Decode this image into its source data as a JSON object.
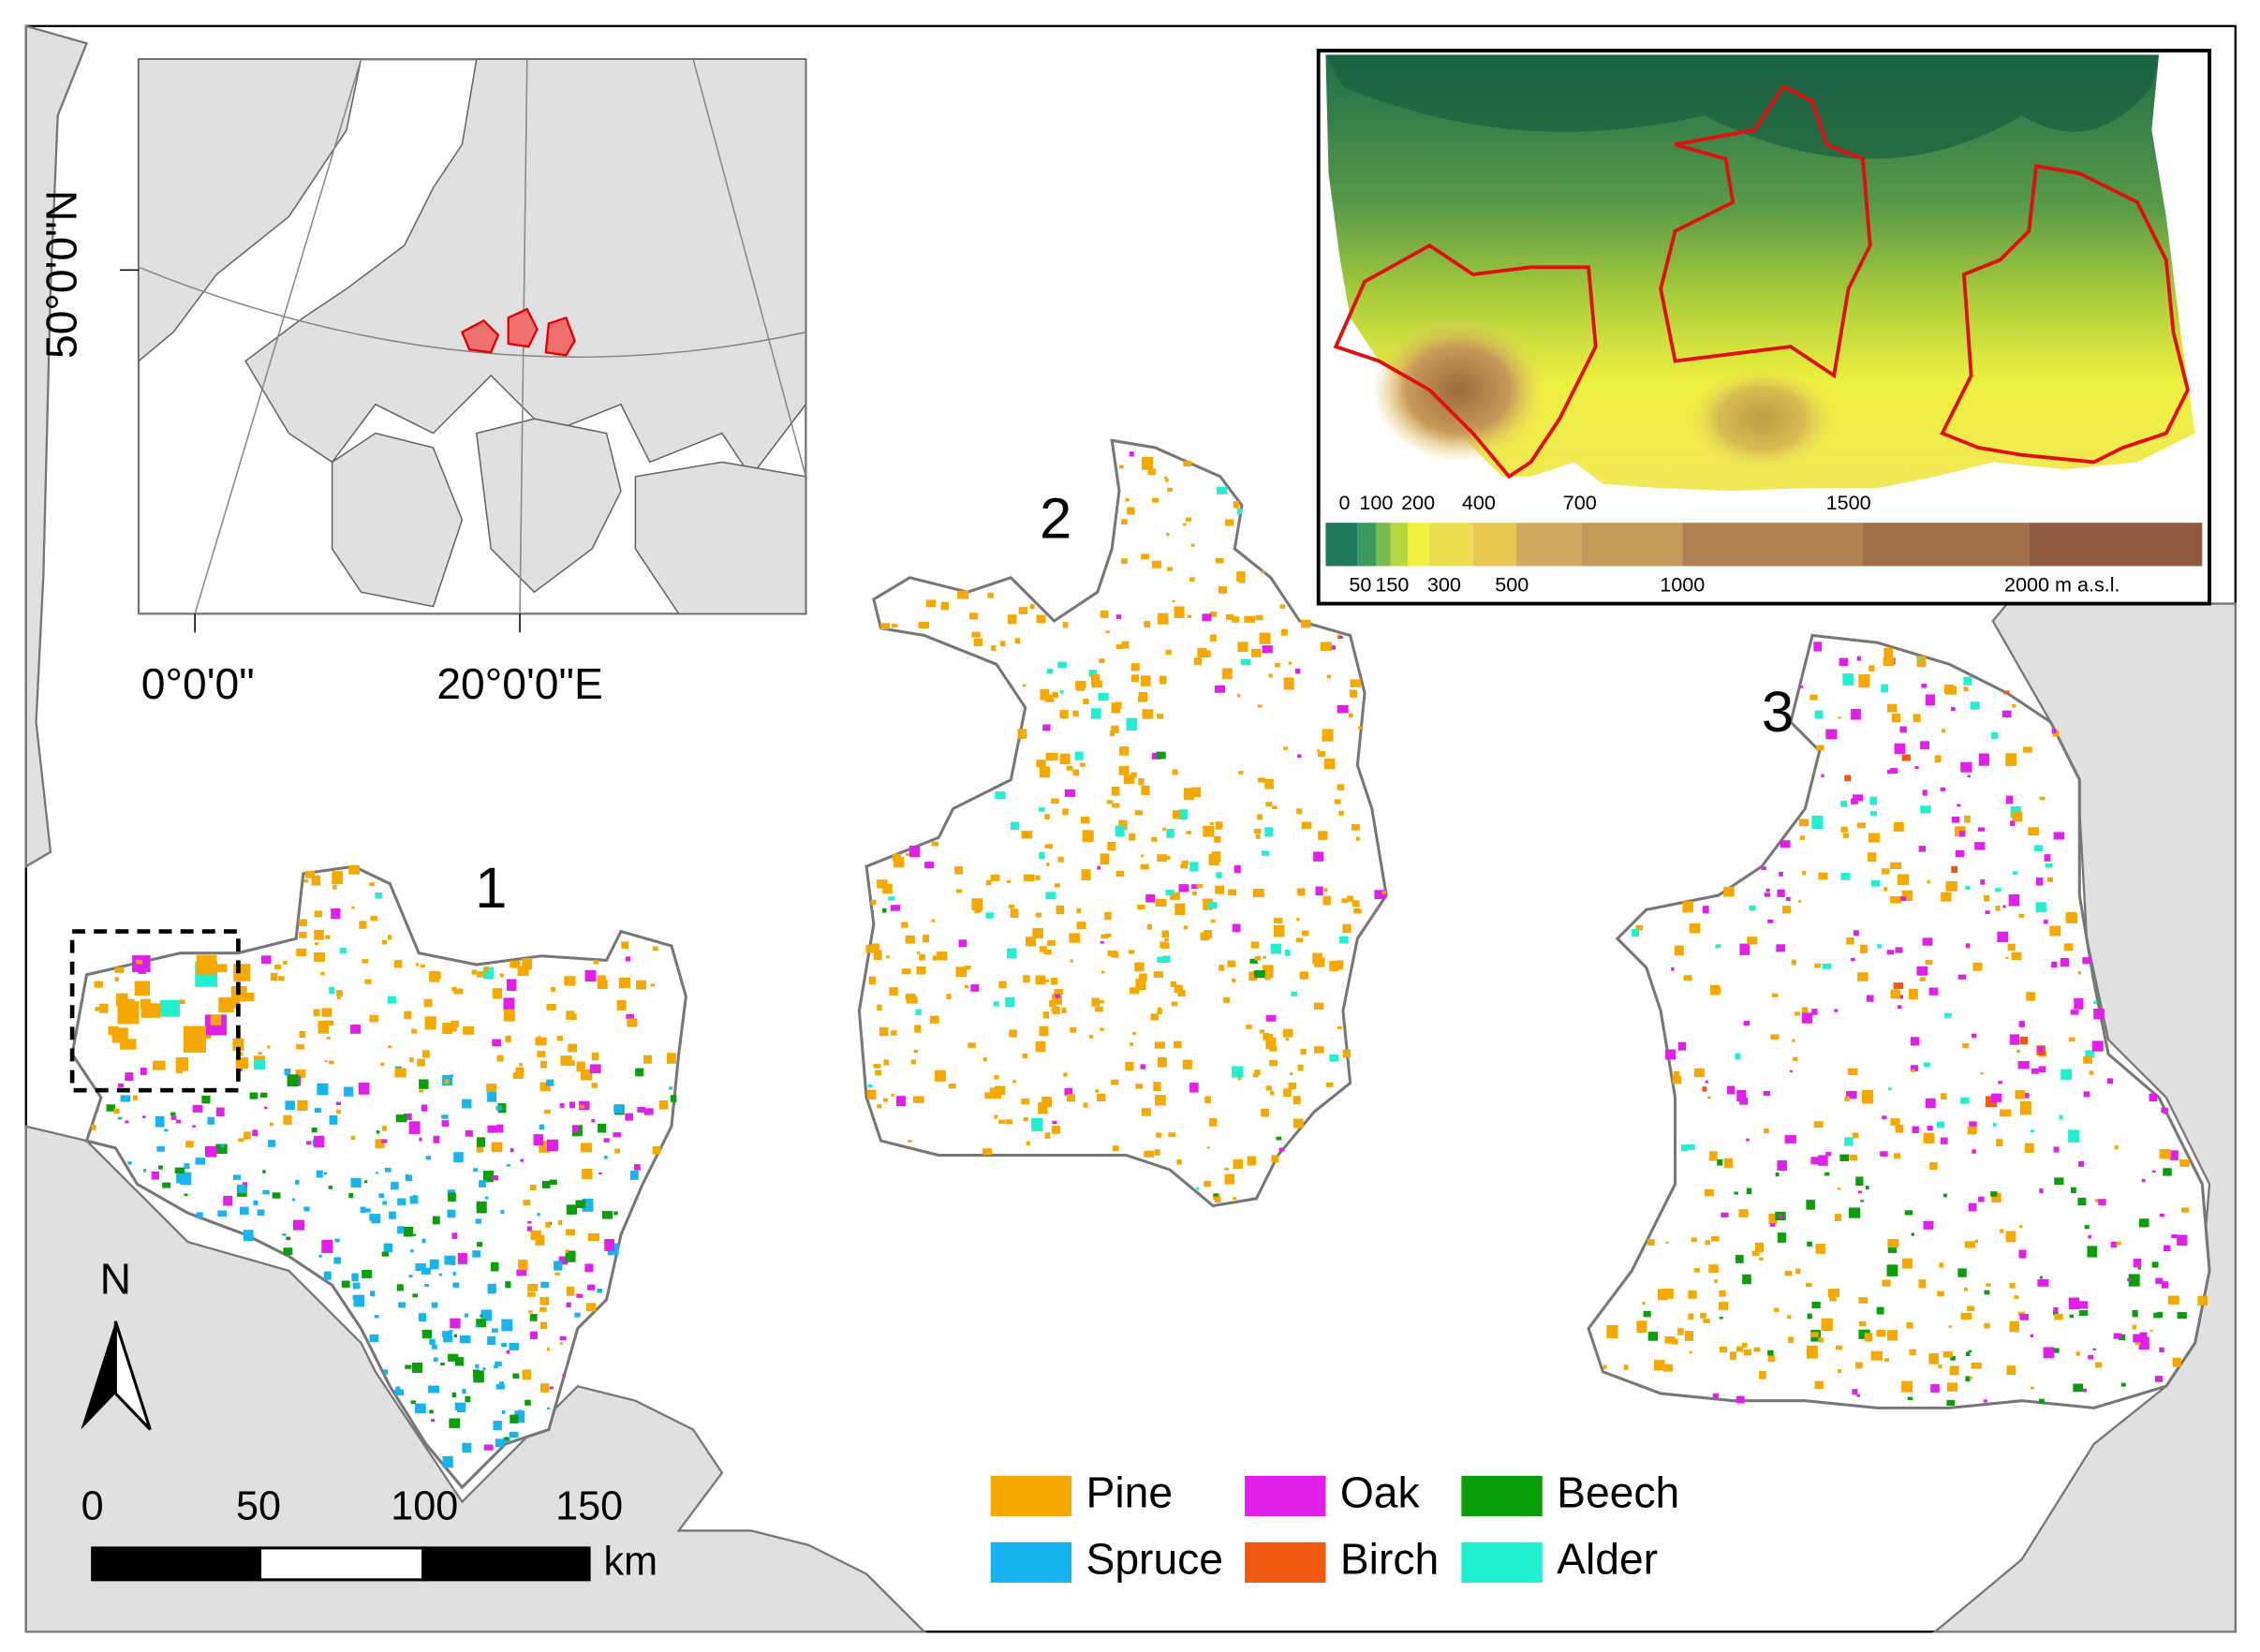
{
  "inset_map": {
    "latitude_label": "50°0'0\"N",
    "longitude_labels": [
      "0°0'0\"",
      "20°0'0\"E"
    ]
  },
  "elevation_legend": {
    "top_labels": [
      "0",
      "100",
      "200",
      "400",
      "700",
      "1500"
    ],
    "bottom_labels": [
      "50",
      "150",
      "300",
      "500",
      "1000",
      "2000 m a.s.l."
    ]
  },
  "regions": [
    {
      "label": "1"
    },
    {
      "label": "2"
    },
    {
      "label": "3"
    }
  ],
  "scale_bar": {
    "labels": [
      "0",
      "50",
      "100",
      "150"
    ],
    "unit": "km"
  },
  "north_arrow": {
    "label": "N"
  },
  "legend": [
    {
      "name": "Pine",
      "color": "#f5a800"
    },
    {
      "name": "Oak",
      "color": "#e020e8"
    },
    {
      "name": "Beech",
      "color": "#0a9e0a"
    },
    {
      "name": "Spruce",
      "color": "#18b4f0"
    },
    {
      "name": "Birch",
      "color": "#f05a10"
    },
    {
      "name": "Alder",
      "color": "#20f0d0"
    }
  ]
}
